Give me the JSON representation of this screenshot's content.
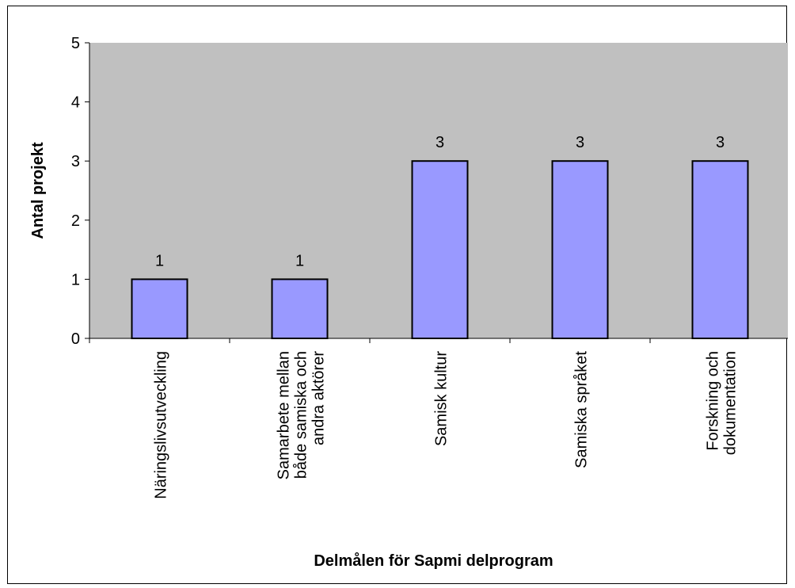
{
  "chart_data": {
    "type": "bar",
    "categories": [
      [
        "Näringslivsutveckling"
      ],
      [
        "Samarbete mellan",
        "både samiska och",
        "andra aktörer"
      ],
      [
        "Samisk kultur"
      ],
      [
        "Samiska språket"
      ],
      [
        "Forskning och",
        "dokumentation"
      ]
    ],
    "values": [
      1,
      1,
      3,
      3,
      3
    ],
    "data_labels": [
      "1",
      "1",
      "3",
      "3",
      "3"
    ],
    "xlabel": "Delmålen för Sapmi delprogram",
    "ylabel": "Antal projekt",
    "ylim": [
      0,
      5
    ],
    "yticks": [
      0,
      1,
      2,
      3,
      4,
      5
    ],
    "grid": false,
    "colors": {
      "plot_background": "#c0c0c0",
      "bar_fill": "#9999ff",
      "bar_stroke": "#000000",
      "axis": "#000000"
    }
  }
}
